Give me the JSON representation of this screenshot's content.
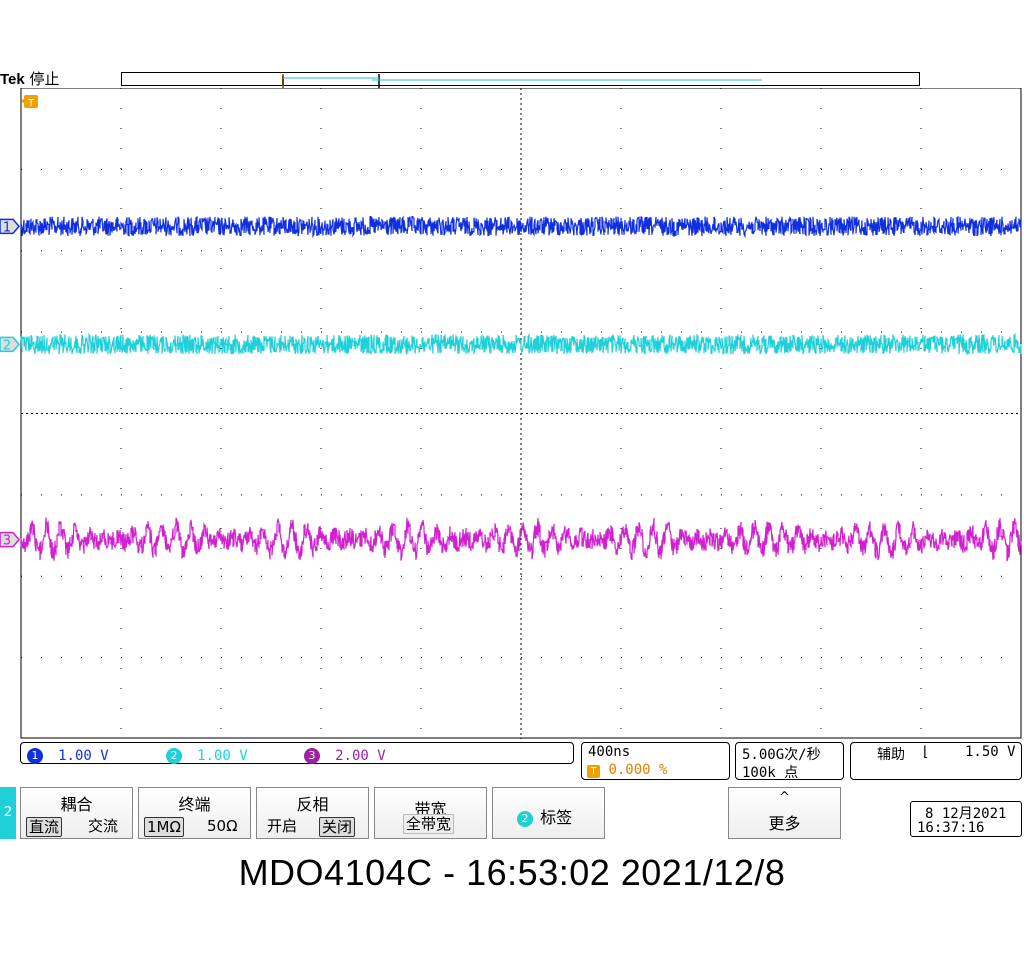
{
  "header": {
    "brand": "Tek",
    "status": "停止"
  },
  "trigger_marker": {
    "label": "T",
    "position_percent": 0
  },
  "channels": [
    {
      "id": "1",
      "color": "#1030e0",
      "scale": "1.00 V",
      "baseline_div": -2.3,
      "noise_div": 0.12,
      "periodic_div": 0
    },
    {
      "id": "2",
      "color": "#20d0d8",
      "scale": "1.00 V",
      "baseline_div": -0.85,
      "noise_div": 0.12,
      "periodic_div": 0
    },
    {
      "id": "3",
      "color": "#d020d0",
      "scale": "2.00 V",
      "baseline_div": 1.55,
      "noise_div": 0.12,
      "periodic_div": 0.16
    }
  ],
  "timebase": {
    "scale": "400ns",
    "trigger_marker": "T",
    "position": "0.000 %"
  },
  "acquisition": {
    "rate": "5.00G次/秒",
    "points": "100k 点"
  },
  "trigger": {
    "source": "辅助",
    "slope_icon": "falling-edge-icon",
    "slope_glyph": "⌊",
    "level": "1.50 V"
  },
  "menu": {
    "channel_tab": "2",
    "coupling": {
      "title": "耦合",
      "options": [
        "直流",
        "交流"
      ],
      "selected": 0
    },
    "termination": {
      "title": "终端",
      "options": [
        "1MΩ",
        "50Ω"
      ],
      "selected": 0
    },
    "invert": {
      "title": "反相",
      "options": [
        "开启",
        "关闭"
      ],
      "selected": 1
    },
    "bandwidth": {
      "title": "带宽",
      "value": "全带宽"
    },
    "label": {
      "channel": "2",
      "text": "标签"
    },
    "more": {
      "arrow": "^",
      "text": "更多"
    }
  },
  "clock": {
    "date": "8 12月2021",
    "time": "16:37:16"
  },
  "caption": "MDO4104C - 16:53:02   2021/12/8"
}
